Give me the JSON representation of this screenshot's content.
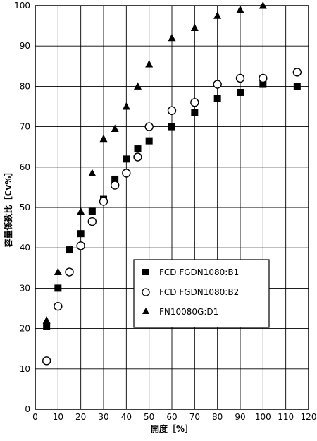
{
  "chart_data": {
    "type": "scatter",
    "xlabel": "開度［%］",
    "ylabel": "容量係数比［Cv%］",
    "xlim": [
      0,
      120
    ],
    "ylim": [
      0,
      100
    ],
    "x_ticks": [
      "0",
      "10",
      "20",
      "30",
      "40",
      "50",
      "60",
      "70",
      "80",
      "90",
      "100",
      "110",
      "120"
    ],
    "y_ticks": [
      "0",
      "10",
      "20",
      "30",
      "40",
      "50",
      "60",
      "70",
      "80",
      "90",
      "100"
    ],
    "grid": true,
    "legend_position": "lower-right",
    "series": [
      {
        "name": "FCD FGDN1080:B1",
        "marker": "square",
        "points": [
          [
            5,
            20.5
          ],
          [
            10,
            30
          ],
          [
            15,
            39.5
          ],
          [
            20,
            43.5
          ],
          [
            25,
            49
          ],
          [
            30,
            52
          ],
          [
            35,
            57
          ],
          [
            40,
            62
          ],
          [
            45,
            64.5
          ],
          [
            50,
            66.5
          ],
          [
            60,
            70
          ],
          [
            70,
            73.5
          ],
          [
            80,
            77
          ],
          [
            90,
            78.5
          ],
          [
            100,
            80.5
          ],
          [
            115,
            80
          ]
        ]
      },
      {
        "name": "FCD FGDN1080:B2",
        "marker": "open-circle",
        "points": [
          [
            5,
            12
          ],
          [
            10,
            25.5
          ],
          [
            15,
            34
          ],
          [
            20,
            40.5
          ],
          [
            25,
            46.5
          ],
          [
            30,
            51.5
          ],
          [
            35,
            55.5
          ],
          [
            40,
            58.5
          ],
          [
            45,
            62.5
          ],
          [
            50,
            70
          ],
          [
            60,
            74
          ],
          [
            70,
            76
          ],
          [
            80,
            80.5
          ],
          [
            90,
            82
          ],
          [
            100,
            82
          ],
          [
            115,
            83.5
          ]
        ]
      },
      {
        "name": "FN10080G:D1",
        "marker": "triangle",
        "points": [
          [
            5,
            22
          ],
          [
            10,
            34
          ],
          [
            20,
            49
          ],
          [
            25,
            58.5
          ],
          [
            30,
            67
          ],
          [
            35,
            69.5
          ],
          [
            40,
            75
          ],
          [
            45,
            80
          ],
          [
            50,
            85.5
          ],
          [
            60,
            92
          ],
          [
            70,
            94.5
          ],
          [
            80,
            97.5
          ],
          [
            90,
            99
          ],
          [
            100,
            100
          ]
        ]
      }
    ]
  }
}
